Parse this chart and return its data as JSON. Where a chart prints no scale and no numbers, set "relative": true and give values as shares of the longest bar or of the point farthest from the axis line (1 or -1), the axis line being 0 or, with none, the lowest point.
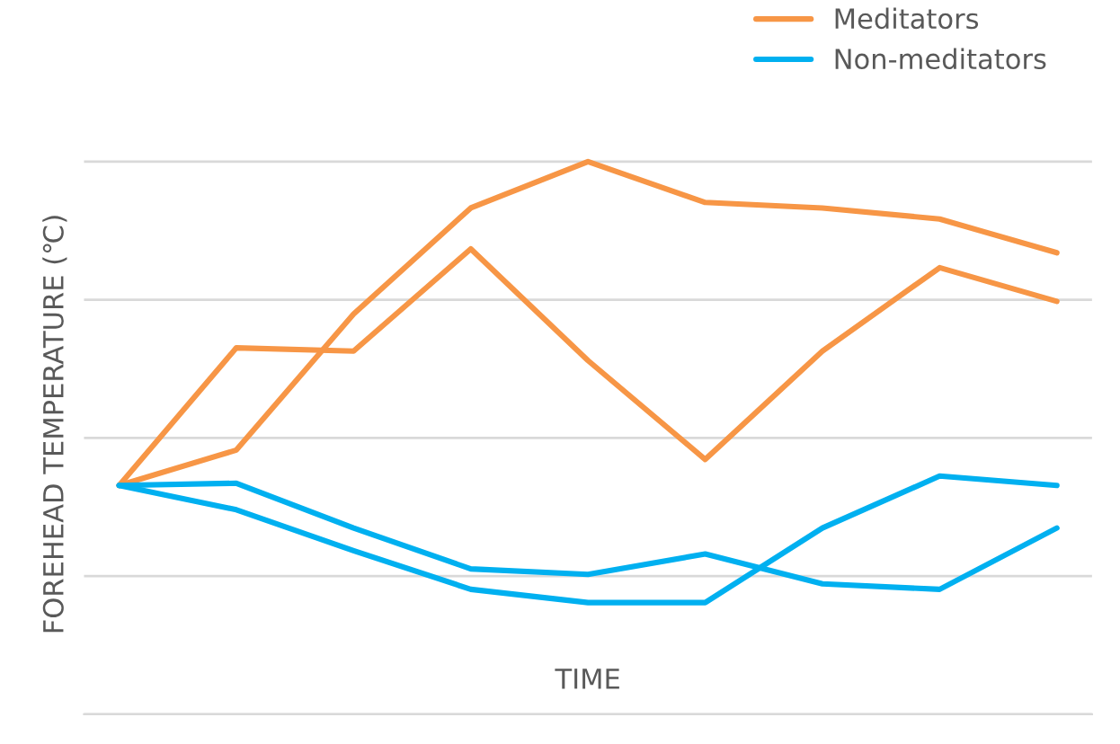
{
  "chart_data": {
    "type": "line",
    "relative": true,
    "ylabel": "FOREHEAD TEMPERATURE (℃)",
    "xlabel": "TIME",
    "categories": [
      null,
      null,
      null,
      null,
      null,
      null,
      null,
      null,
      null
    ],
    "series": [
      {
        "name": "Meditators",
        "color": "#f79646",
        "values": [
          0.414,
          0.478,
          0.724,
          0.916,
          1,
          0.926,
          0.916,
          0.896,
          0.835
        ]
      },
      {
        "color": "#f79646",
        "values": [
          0.414,
          0.663,
          0.657,
          0.842,
          0.64,
          0.461,
          0.657,
          0.808,
          0.747
        ]
      },
      {
        "name": "Non-meditators",
        "color": "#00b0f0",
        "values": [
          0.414,
          0.418,
          0.337,
          0.263,
          0.253,
          0.29,
          0.236,
          0.226,
          0.337
        ]
      },
      {
        "color": "#00b0f0",
        "values": [
          0.414,
          0.37,
          0.296,
          0.226,
          0.202,
          0.202,
          0.337,
          0.431,
          0.414
        ]
      }
    ],
    "grid": "y",
    "legend": "top right",
    "marker": "none",
    "line_style": "solid"
  }
}
